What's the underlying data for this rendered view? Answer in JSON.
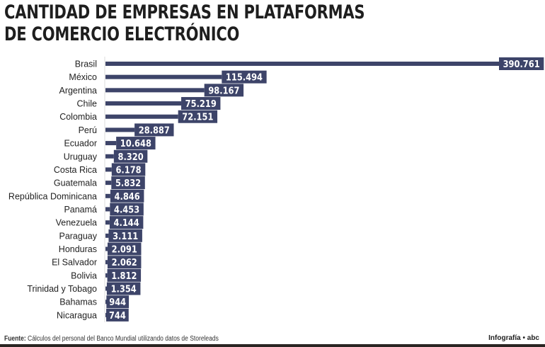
{
  "chart_data": {
    "type": "bar",
    "orientation": "horizontal",
    "title": "CANTIDAD DE EMPRESAS EN PLATAFORMAS DE COMERCIO ELECTRÓNICO",
    "title_lines": [
      "CANTIDAD DE EMPRESAS EN PLATAFORMAS",
      "DE COMERCIO ELECTRÓNICO"
    ],
    "categories": [
      "Brasil",
      "México",
      "Argentina",
      "Chile",
      "Colombia",
      "Perú",
      "Ecuador",
      "Uruguay",
      "Costa Rica",
      "Guatemala",
      "República Dominicana",
      "Panamá",
      "Venezuela",
      "Paraguay",
      "Honduras",
      "El Salvador",
      "Bolivia",
      "Trinidad y Tobago",
      "Bahamas",
      "Nicaragua"
    ],
    "values": [
      390761,
      115494,
      98167,
      75219,
      72151,
      28887,
      10648,
      8320,
      6178,
      5832,
      4846,
      4453,
      4144,
      3111,
      2091,
      2062,
      1812,
      1354,
      944,
      744
    ],
    "value_labels": [
      "390.761",
      "115.494",
      "98.167",
      "75.219",
      "72.151",
      "28.887",
      "10.648",
      "8.320",
      "6.178",
      "5.832",
      "4.846",
      "4.453",
      "4.144",
      "3.111",
      "2.091",
      "2.062",
      "1.812",
      "1.354",
      "944",
      "744"
    ],
    "xlim": [
      0,
      390761
    ],
    "grid": false,
    "bar_color": "#3d4469"
  },
  "footer": {
    "source_label": "Fuente:",
    "source_text": " Cálculos del personal del Banco Mundial utilizando datos de Storeleads",
    "credit": "Infografía • abc"
  }
}
